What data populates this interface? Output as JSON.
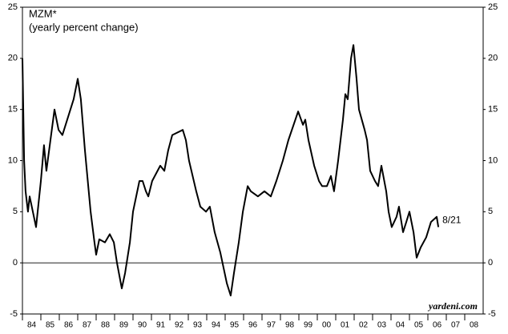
{
  "chart_data": {
    "type": "line",
    "title": "MZM*",
    "subtitle": "(yearly percent change)",
    "source": "yardeni.com",
    "annotations": [
      "8/21"
    ],
    "x": [
      1984.0,
      1984.09,
      1984.17,
      1984.3,
      1984.39,
      1984.74,
      1985.0,
      1985.17,
      1985.3,
      1985.74,
      1985.96,
      1986.17,
      1986.78,
      1987.0,
      1987.17,
      1987.39,
      1987.7,
      1987.91,
      1988.0,
      1988.17,
      1988.48,
      1988.74,
      1988.96,
      1989.13,
      1989.39,
      1989.57,
      1989.83,
      1990.0,
      1990.35,
      1990.52,
      1990.7,
      1990.83,
      1991.04,
      1991.48,
      1991.7,
      1991.91,
      1992.13,
      1992.7,
      1992.87,
      1993.04,
      1993.43,
      1993.65,
      1993.96,
      1994.17,
      1994.43,
      1994.74,
      1995.09,
      1995.3,
      1995.48,
      1995.74,
      1995.96,
      1996.22,
      1996.39,
      1996.78,
      1997.13,
      1997.48,
      1997.78,
      1998.13,
      1998.43,
      1998.96,
      1999.22,
      1999.35,
      1999.52,
      1999.83,
      2000.09,
      2000.26,
      2000.52,
      2000.74,
      2000.91,
      2001.13,
      2001.39,
      2001.52,
      2001.65,
      2001.83,
      2001.96,
      2002.13,
      2002.26,
      2002.57,
      2002.7,
      2002.87,
      2003.13,
      2003.3,
      2003.48,
      2003.74,
      2003.87,
      2004.04,
      2004.3,
      2004.43,
      2004.65,
      2004.83,
      2005.0,
      2005.22,
      2005.39,
      2005.61,
      2005.91,
      2006.17,
      2006.48,
      2006.57
    ],
    "series": [
      {
        "name": "MZM",
        "color": "#000000",
        "values": [
          20,
          10,
          7,
          5,
          6.5,
          3.5,
          8,
          11.5,
          9,
          15,
          13,
          12.5,
          16,
          18,
          16,
          11,
          5,
          2,
          0.8,
          2.3,
          2,
          2.8,
          2,
          0,
          -2.5,
          -1,
          2,
          5,
          8,
          8,
          7,
          6.5,
          8,
          9.5,
          9,
          11,
          12.5,
          13,
          12,
          10,
          7,
          5.5,
          5,
          5.5,
          3,
          1,
          -2,
          -3.2,
          -1,
          2,
          5,
          7.5,
          7,
          6.5,
          7,
          6.5,
          8,
          10,
          12,
          14.8,
          13.5,
          14,
          12,
          9.5,
          8,
          7.5,
          7.5,
          8.5,
          7,
          10,
          14,
          16.5,
          16,
          20,
          21.3,
          18,
          15,
          13,
          12,
          9,
          8,
          7.5,
          9.5,
          7,
          5,
          3.5,
          4.5,
          5.5,
          3,
          4,
          5,
          3,
          0.5,
          1.5,
          2.5,
          4,
          4.5,
          3.5
        ]
      }
    ],
    "xlim": [
      1984,
      2009
    ],
    "xticks": [
      {
        "value": 1984,
        "label": "84"
      },
      {
        "value": 1985,
        "label": "85"
      },
      {
        "value": 1986,
        "label": "86"
      },
      {
        "value": 1987,
        "label": "87"
      },
      {
        "value": 1988,
        "label": "88"
      },
      {
        "value": 1989,
        "label": "89"
      },
      {
        "value": 1990,
        "label": "90"
      },
      {
        "value": 1991,
        "label": "91"
      },
      {
        "value": 1992,
        "label": "92"
      },
      {
        "value": 1993,
        "label": "93"
      },
      {
        "value": 1994,
        "label": "94"
      },
      {
        "value": 1995,
        "label": "95"
      },
      {
        "value": 1996,
        "label": "96"
      },
      {
        "value": 1997,
        "label": "97"
      },
      {
        "value": 1998,
        "label": "98"
      },
      {
        "value": 1999,
        "label": "99"
      },
      {
        "value": 2000,
        "label": "00"
      },
      {
        "value": 2001,
        "label": "01"
      },
      {
        "value": 2002,
        "label": "02"
      },
      {
        "value": 2003,
        "label": "03"
      },
      {
        "value": 2004,
        "label": "04"
      },
      {
        "value": 2005,
        "label": "05"
      },
      {
        "value": 2006,
        "label": "06"
      },
      {
        "value": 2007,
        "label": "07"
      },
      {
        "value": 2008,
        "label": "08"
      }
    ],
    "ylim": [
      -5,
      25
    ],
    "yticks": [
      -5,
      0,
      5,
      10,
      15,
      20,
      25
    ],
    "zero_line": true
  }
}
